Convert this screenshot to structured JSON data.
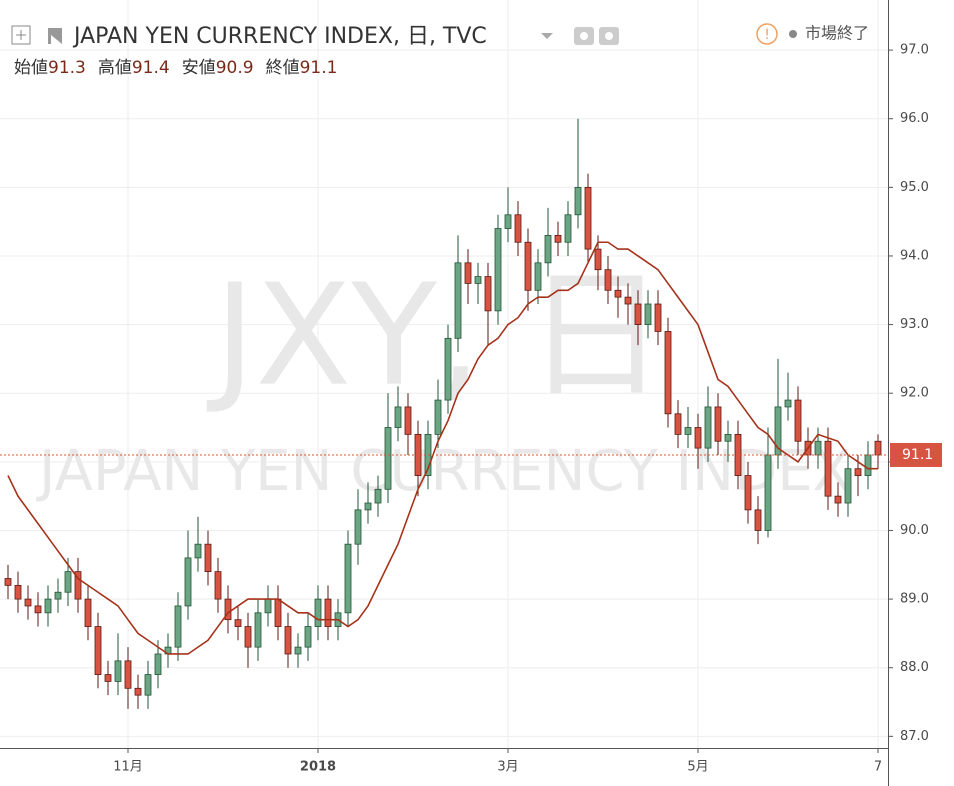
{
  "chart_data": {
    "type": "candlestick",
    "title": "JAPAN YEN CURRENCY INDEX, 日, TVC",
    "status": "市場終了",
    "ohlc_labels": [
      "始値",
      "高値",
      "安値",
      "終値"
    ],
    "watermark_symbol": "JXY, 日",
    "watermark_name": "JAPAN YEN CURRENCY INDEX",
    "categories": [
      null,
      null,
      null,
      null,
      null,
      null,
      null,
      null,
      null,
      null,
      null,
      null,
      "11月",
      null,
      null,
      null,
      null,
      null,
      null,
      null,
      null,
      null,
      null,
      null,
      null,
      null,
      null,
      null,
      null,
      null,
      null,
      "2018",
      null,
      null,
      null,
      null,
      null,
      null,
      null,
      null,
      null,
      null,
      null,
      null,
      null,
      null,
      null,
      null,
      null,
      null,
      "3月",
      null,
      null,
      null,
      null,
      null,
      null,
      null,
      null,
      null,
      null,
      null,
      null,
      null,
      null,
      null,
      null,
      null,
      null,
      "5月",
      null,
      null,
      null,
      null,
      null,
      null,
      null,
      null,
      null,
      null,
      null,
      null,
      null,
      null,
      null,
      null,
      null,
      "7"
    ],
    "open": [
      89.3,
      89.2,
      89.0,
      88.9,
      88.8,
      89.0,
      89.1,
      89.4,
      89.0,
      88.6,
      87.9,
      87.8,
      88.1,
      87.7,
      87.6,
      87.9,
      88.2,
      88.3,
      88.9,
      89.6,
      89.8,
      89.4,
      89.0,
      88.7,
      88.6,
      88.3,
      88.8,
      89.0,
      88.6,
      88.2,
      88.3,
      88.6,
      89.0,
      88.6,
      88.8,
      89.8,
      90.3,
      90.4,
      90.6,
      91.5,
      91.8,
      91.4,
      90.8,
      91.4,
      91.9,
      92.8,
      93.9,
      93.6,
      93.7,
      93.2,
      94.4,
      94.6,
      94.2,
      93.5,
      93.9,
      94.3,
      94.2,
      94.6,
      95.0,
      94.1,
      93.8,
      93.5,
      93.4,
      93.3,
      93.0,
      93.3,
      92.9,
      91.7,
      91.4,
      91.5,
      91.2,
      91.8,
      91.3,
      91.4,
      90.8,
      90.3,
      90.0,
      91.1,
      91.8,
      91.9,
      91.3,
      91.1,
      91.3,
      90.5,
      90.4,
      90.9,
      90.8,
      91.3
    ],
    "high": [
      89.5,
      89.4,
      89.2,
      89.1,
      89.2,
      89.3,
      89.6,
      89.6,
      89.2,
      88.8,
      88.1,
      88.5,
      88.3,
      87.9,
      88.1,
      88.4,
      88.5,
      89.1,
      90.0,
      90.2,
      90.0,
      89.6,
      89.2,
      88.9,
      88.8,
      89.0,
      89.2,
      89.2,
      88.8,
      88.5,
      88.8,
      89.2,
      89.2,
      89.0,
      90.0,
      90.6,
      90.7,
      90.8,
      92.0,
      92.1,
      92.0,
      91.6,
      91.6,
      92.2,
      93.0,
      94.3,
      94.1,
      93.9,
      93.9,
      94.6,
      95.0,
      94.8,
      94.4,
      94.1,
      94.7,
      94.5,
      94.8,
      96.0,
      95.2,
      94.3,
      94.0,
      93.7,
      93.6,
      93.5,
      93.5,
      93.5,
      93.1,
      91.9,
      91.8,
      91.7,
      92.1,
      92.0,
      91.6,
      91.6,
      91.0,
      90.5,
      91.5,
      92.5,
      92.3,
      92.1,
      91.5,
      91.5,
      91.5,
      90.7,
      91.1,
      91.1,
      91.3,
      91.4
    ],
    "low": [
      89.0,
      88.8,
      88.7,
      88.6,
      88.6,
      88.8,
      88.9,
      88.8,
      88.4,
      87.7,
      87.6,
      87.6,
      87.4,
      87.4,
      87.4,
      87.7,
      88.0,
      88.1,
      88.7,
      89.4,
      89.2,
      88.8,
      88.5,
      88.4,
      88.0,
      88.1,
      88.6,
      88.4,
      88.0,
      88.0,
      88.1,
      88.4,
      88.4,
      88.4,
      88.6,
      89.5,
      90.1,
      90.2,
      90.4,
      91.3,
      91.1,
      90.5,
      90.6,
      91.2,
      91.7,
      92.6,
      93.3,
      93.3,
      92.7,
      93.0,
      94.2,
      94.0,
      93.2,
      93.3,
      93.7,
      94.0,
      94.0,
      94.4,
      93.9,
      93.5,
      93.3,
      93.1,
      93.0,
      92.7,
      92.8,
      92.7,
      91.5,
      91.2,
      91.2,
      90.9,
      91.0,
      91.1,
      91.0,
      90.6,
      90.1,
      89.8,
      89.9,
      90.9,
      91.6,
      91.1,
      90.9,
      90.9,
      90.3,
      90.2,
      90.2,
      90.5,
      90.6,
      90.9
    ],
    "close": [
      89.2,
      89.0,
      88.9,
      88.8,
      89.0,
      89.1,
      89.4,
      89.0,
      88.6,
      87.9,
      87.8,
      88.1,
      87.7,
      87.6,
      87.9,
      88.2,
      88.3,
      88.9,
      89.6,
      89.8,
      89.4,
      89.0,
      88.7,
      88.6,
      88.3,
      88.8,
      89.0,
      88.6,
      88.2,
      88.3,
      88.6,
      89.0,
      88.6,
      88.8,
      89.8,
      90.3,
      90.4,
      90.6,
      91.5,
      91.8,
      91.4,
      90.8,
      91.4,
      91.9,
      92.8,
      93.9,
      93.6,
      93.7,
      93.2,
      94.4,
      94.6,
      94.2,
      93.5,
      93.9,
      94.3,
      94.2,
      94.6,
      95.0,
      94.1,
      93.8,
      93.5,
      93.4,
      93.3,
      93.0,
      93.3,
      92.9,
      91.7,
      91.4,
      91.5,
      91.2,
      91.8,
      91.3,
      91.4,
      90.8,
      90.3,
      90.0,
      91.1,
      91.8,
      91.9,
      91.3,
      91.1,
      91.3,
      90.5,
      90.4,
      90.9,
      90.8,
      91.1,
      91.1
    ],
    "up_color": "#6ba583",
    "down_color": "#d75442",
    "ma": {
      "color": "#a5331b",
      "values": [
        90.8,
        90.5,
        90.3,
        90.1,
        89.9,
        89.7,
        89.5,
        89.3,
        89.2,
        89.1,
        89.0,
        88.9,
        88.7,
        88.5,
        88.4,
        88.3,
        88.2,
        88.2,
        88.2,
        88.3,
        88.4,
        88.6,
        88.8,
        88.9,
        89.0,
        89.0,
        89.0,
        89.0,
        88.9,
        88.8,
        88.8,
        88.7,
        88.7,
        88.7,
        88.6,
        88.7,
        88.9,
        89.2,
        89.5,
        89.8,
        90.2,
        90.6,
        90.9,
        91.3,
        91.6,
        92.0,
        92.2,
        92.5,
        92.7,
        92.8,
        93.0,
        93.1,
        93.3,
        93.4,
        93.4,
        93.5,
        93.5,
        93.6,
        93.9,
        94.2,
        94.2,
        94.1,
        94.1,
        94.0,
        93.9,
        93.8,
        93.6,
        93.4,
        93.2,
        93.0,
        92.6,
        92.2,
        92.1,
        91.9,
        91.7,
        91.5,
        91.4,
        91.2,
        91.1,
        91.0,
        91.2,
        91.4,
        91.35,
        91.3,
        91.1,
        91.0,
        90.9,
        90.9
      ]
    },
    "ylim": [
      86.83,
      97.73
    ],
    "yticks": [
      {
        "value": 87,
        "label": "87.0"
      },
      {
        "value": 88,
        "label": "88.0"
      },
      {
        "value": 89,
        "label": "89.0"
      },
      {
        "value": 90,
        "label": "90.0"
      },
      {
        "value": 91,
        "label": "91.0"
      },
      {
        "value": 92,
        "label": "92.0"
      },
      {
        "value": 93,
        "label": "93.0"
      },
      {
        "value": 94,
        "label": "94.0"
      },
      {
        "value": 95,
        "label": "95.0"
      },
      {
        "value": 96,
        "label": "96.0"
      },
      {
        "value": 97,
        "label": "97.0"
      }
    ],
    "grid": true
  }
}
